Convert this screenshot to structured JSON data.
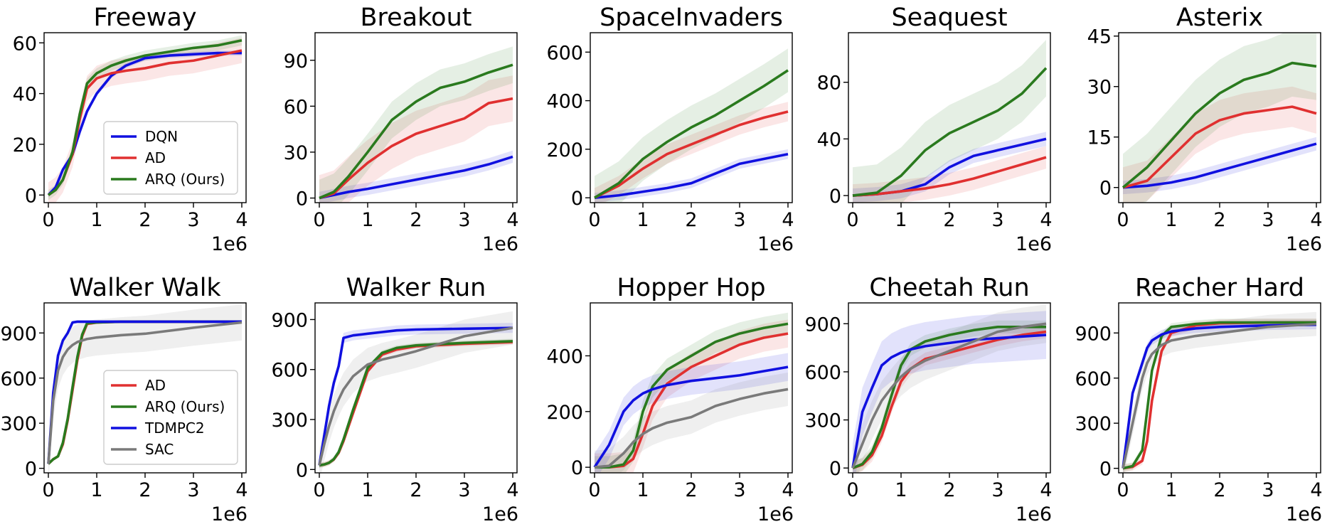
{
  "colors": {
    "DQN": "#1010e0",
    "AD": "#e03030",
    "ARQ (Ours)": "#2a7a1e",
    "TDMPC2": "#1010e0",
    "SAC": "#7a7a7a"
  },
  "chart_data": [
    {
      "type": "line",
      "title": "Freeway",
      "xlabel": "",
      "ylabel": "",
      "x_multiplier": "1e6",
      "xlim": [
        0,
        4
      ],
      "ylim": [
        -3,
        64
      ],
      "xticks": [
        "0",
        "1",
        "2",
        "3",
        "4"
      ],
      "yticks": [
        0,
        20,
        40,
        60
      ],
      "legend": {
        "position": "lower-right",
        "entries": [
          "DQN",
          "AD",
          "ARQ (Ours)"
        ]
      },
      "x": [
        0,
        0.15,
        0.3,
        0.5,
        0.65,
        0.8,
        1.0,
        1.3,
        1.6,
        2.0,
        2.5,
        3.0,
        3.5,
        4.0
      ],
      "series": [
        {
          "name": "DQN",
          "values": [
            0,
            3,
            10,
            16,
            25,
            33,
            40,
            47,
            51,
            54,
            55,
            55.5,
            56,
            56
          ],
          "band": 1
        },
        {
          "name": "AD",
          "values": [
            0,
            2,
            6,
            16,
            30,
            42,
            46,
            48,
            49,
            50,
            52,
            53,
            55,
            57
          ],
          "band": 5
        },
        {
          "name": "ARQ (Ours)",
          "values": [
            0,
            2,
            6,
            17,
            32,
            44,
            48,
            51,
            53,
            55,
            56.5,
            58,
            59,
            61
          ],
          "band": 2
        }
      ]
    },
    {
      "type": "line",
      "title": "Breakout",
      "xlabel": "",
      "ylabel": "",
      "x_multiplier": "1e6",
      "xlim": [
        0,
        4
      ],
      "ylim": [
        -3,
        108
      ],
      "xticks": [
        "0",
        "1",
        "2",
        "3",
        "4"
      ],
      "yticks": [
        0,
        30,
        60,
        90
      ],
      "x": [
        0,
        0.3,
        0.6,
        1.0,
        1.5,
        2.0,
        2.5,
        3.0,
        3.5,
        4.0
      ],
      "series": [
        {
          "name": "DQN",
          "values": [
            0,
            2,
            4,
            6,
            9,
            12,
            15,
            18,
            22,
            27
          ],
          "band": 4
        },
        {
          "name": "AD",
          "values": [
            0,
            3,
            12,
            23,
            34,
            42,
            47,
            52,
            62,
            65
          ],
          "band": 15
        },
        {
          "name": "ARQ (Ours)",
          "values": [
            0,
            4,
            14,
            30,
            51,
            63,
            72,
            76,
            82,
            87
          ],
          "band": 12
        }
      ]
    },
    {
      "type": "line",
      "title": "SpaceInvaders",
      "xlabel": "",
      "ylabel": "",
      "x_multiplier": "1e6",
      "xlim": [
        0,
        4
      ],
      "ylim": [
        -20,
        680
      ],
      "xticks": [
        "0",
        "1",
        "2",
        "3",
        "4"
      ],
      "yticks": [
        0,
        200,
        400,
        600
      ],
      "x": [
        0,
        0.5,
        1.0,
        1.5,
        2.0,
        2.5,
        3.0,
        3.5,
        4.0
      ],
      "series": [
        {
          "name": "DQN",
          "values": [
            0,
            10,
            25,
            40,
            60,
            100,
            140,
            160,
            180
          ],
          "band": 20
        },
        {
          "name": "AD",
          "values": [
            0,
            50,
            120,
            180,
            220,
            260,
            300,
            330,
            355
          ],
          "band": 40
        },
        {
          "name": "ARQ (Ours)",
          "values": [
            0,
            60,
            160,
            230,
            290,
            340,
            400,
            460,
            525
          ],
          "band": 90
        }
      ]
    },
    {
      "type": "line",
      "title": "Seaquest",
      "xlabel": "",
      "ylabel": "",
      "x_multiplier": "1e6",
      "xlim": [
        0,
        4
      ],
      "ylim": [
        -5,
        115
      ],
      "xticks": [
        "0",
        "1",
        "2",
        "3",
        "4"
      ],
      "yticks": [
        0,
        40,
        80
      ],
      "x": [
        0,
        0.5,
        1.0,
        1.5,
        2.0,
        2.5,
        3.0,
        3.5,
        4.0
      ],
      "series": [
        {
          "name": "DQN",
          "values": [
            0,
            1,
            3,
            8,
            20,
            28,
            32,
            36,
            40
          ],
          "band": 5
        },
        {
          "name": "AD",
          "values": [
            0,
            1,
            3,
            5,
            8,
            12,
            17,
            22,
            27
          ],
          "band": 8
        },
        {
          "name": "ARQ (Ours)",
          "values": [
            0,
            2,
            14,
            32,
            44,
            52,
            60,
            72,
            90
          ],
          "band": 20
        }
      ]
    },
    {
      "type": "line",
      "title": "Asterix",
      "xlabel": "",
      "ylabel": "",
      "x_multiplier": "1e6",
      "xlim": [
        0,
        4
      ],
      "ylim": [
        -4.5,
        46
      ],
      "xticks": [
        "0",
        "1",
        "2",
        "3",
        "4"
      ],
      "yticks": [
        0,
        15,
        30,
        45
      ],
      "x": [
        0,
        0.5,
        1.0,
        1.5,
        2.0,
        2.5,
        3.0,
        3.5,
        4.0
      ],
      "series": [
        {
          "name": "DQN",
          "values": [
            0,
            0.5,
            1.5,
            3,
            5,
            7,
            9,
            11,
            13
          ],
          "band": 2
        },
        {
          "name": "AD",
          "values": [
            0,
            2,
            9,
            16,
            20,
            22,
            23,
            24,
            22
          ],
          "band": 6
        },
        {
          "name": "ARQ (Ours)",
          "values": [
            0,
            6,
            14,
            22,
            28,
            32,
            34,
            37,
            36
          ],
          "band": 10
        }
      ]
    },
    {
      "type": "line",
      "title": "Walker Walk",
      "xlabel": "",
      "ylabel": "",
      "x_multiplier": "1e6",
      "xlim": [
        0,
        4
      ],
      "ylim": [
        -30,
        1100
      ],
      "xticks": [
        "0",
        "1",
        "2",
        "3",
        "4"
      ],
      "yticks": [
        0,
        300,
        600,
        900
      ],
      "legend": {
        "position": "lower-right",
        "entries": [
          "AD",
          "ARQ (Ours)",
          "TDMPC2",
          "SAC"
        ]
      },
      "x": [
        0,
        0.1,
        0.2,
        0.3,
        0.4,
        0.5,
        0.6,
        0.7,
        0.8,
        1.0,
        1.5,
        2.0,
        3.0,
        4.0
      ],
      "series": [
        {
          "name": "AD",
          "values": [
            30,
            60,
            80,
            160,
            320,
            520,
            720,
            880,
            960,
            970,
            975,
            975,
            975,
            975
          ],
          "band": 10
        },
        {
          "name": "ARQ (Ours)",
          "values": [
            30,
            60,
            80,
            170,
            330,
            540,
            740,
            890,
            965,
            970,
            975,
            975,
            975,
            975
          ],
          "band": 10
        },
        {
          "name": "TDMPC2",
          "values": [
            30,
            500,
            750,
            850,
            900,
            970,
            975,
            975,
            975,
            975,
            975,
            975,
            975,
            975
          ],
          "band": 10
        },
        {
          "name": "SAC",
          "values": [
            30,
            450,
            650,
            740,
            790,
            820,
            840,
            850,
            860,
            870,
            885,
            895,
            935,
            970
          ],
          "band": 120
        }
      ]
    },
    {
      "type": "line",
      "title": "Walker Run",
      "xlabel": "",
      "ylabel": "",
      "x_multiplier": "1e6",
      "xlim": [
        0,
        4
      ],
      "ylim": [
        -20,
        1000
      ],
      "xticks": [
        "0",
        "1",
        "2",
        "3",
        "4"
      ],
      "yticks": [
        0,
        300,
        600,
        900
      ],
      "x": [
        0,
        0.1,
        0.2,
        0.3,
        0.4,
        0.5,
        0.7,
        1.0,
        1.3,
        1.6,
        2.0,
        3.0,
        4.0
      ],
      "series": [
        {
          "name": "AD",
          "values": [
            25,
            30,
            40,
            60,
            100,
            170,
            340,
            590,
            690,
            720,
            740,
            755,
            765
          ],
          "band": 15
        },
        {
          "name": "ARQ (Ours)",
          "values": [
            25,
            30,
            40,
            62,
            105,
            180,
            360,
            610,
            700,
            730,
            745,
            760,
            770
          ],
          "band": 15
        },
        {
          "name": "TDMPC2",
          "values": [
            25,
            200,
            380,
            520,
            620,
            790,
            805,
            815,
            825,
            835,
            840,
            845,
            850
          ],
          "band": 30
        },
        {
          "name": "SAC",
          "values": [
            25,
            150,
            260,
            350,
            420,
            480,
            560,
            630,
            660,
            680,
            710,
            800,
            850
          ],
          "band": 100
        }
      ]
    },
    {
      "type": "line",
      "title": "Hopper Hop",
      "xlabel": "",
      "ylabel": "",
      "x_multiplier": "1e6",
      "xlim": [
        0,
        4
      ],
      "ylim": [
        -20,
        590
      ],
      "xticks": [
        "0",
        "1",
        "2",
        "3",
        "4"
      ],
      "yticks": [
        0,
        200,
        400
      ],
      "x": [
        0,
        0.3,
        0.6,
        0.8,
        1.0,
        1.2,
        1.5,
        2.0,
        2.5,
        3.0,
        3.5,
        4.0
      ],
      "series": [
        {
          "name": "AD",
          "values": [
            0,
            0,
            5,
            30,
            120,
            220,
            300,
            360,
            400,
            440,
            465,
            480
          ],
          "band": 50
        },
        {
          "name": "ARQ (Ours)",
          "values": [
            0,
            0,
            10,
            60,
            200,
            290,
            350,
            400,
            450,
            480,
            500,
            515
          ],
          "band": 40
        },
        {
          "name": "TDMPC2",
          "values": [
            0,
            80,
            200,
            240,
            265,
            280,
            295,
            310,
            320,
            330,
            345,
            360
          ],
          "band": 50
        },
        {
          "name": "SAC",
          "values": [
            0,
            5,
            50,
            90,
            120,
            140,
            160,
            180,
            220,
            245,
            265,
            280
          ],
          "band": 60
        }
      ]
    },
    {
      "type": "line",
      "title": "Cheetah Run",
      "xlabel": "",
      "ylabel": "",
      "x_multiplier": "1e6",
      "xlim": [
        0,
        4
      ],
      "ylim": [
        -30,
        1030
      ],
      "xticks": [
        "0",
        "1",
        "2",
        "3",
        "4"
      ],
      "yticks": [
        0,
        300,
        600,
        900
      ],
      "x": [
        0,
        0.2,
        0.4,
        0.6,
        0.8,
        1.0,
        1.2,
        1.5,
        2.0,
        2.5,
        3.0,
        3.5,
        4.0
      ],
      "series": [
        {
          "name": "AD",
          "values": [
            0,
            20,
            80,
            200,
            380,
            540,
            620,
            680,
            720,
            760,
            800,
            830,
            850
          ],
          "band": 40
        },
        {
          "name": "ARQ (Ours)",
          "values": [
            0,
            25,
            100,
            250,
            450,
            640,
            740,
            790,
            830,
            860,
            880,
            880,
            880
          ],
          "band": 40
        },
        {
          "name": "TDMPC2",
          "values": [
            0,
            350,
            500,
            640,
            690,
            720,
            740,
            760,
            780,
            800,
            810,
            820,
            830
          ],
          "band": 150
        },
        {
          "name": "SAC",
          "values": [
            0,
            150,
            300,
            420,
            500,
            570,
            620,
            670,
            730,
            790,
            850,
            880,
            900
          ],
          "band": 120
        }
      ]
    },
    {
      "type": "line",
      "title": "Reacher Hard",
      "xlabel": "",
      "ylabel": "",
      "x_multiplier": "1e6",
      "xlim": [
        0,
        4
      ],
      "ylim": [
        -30,
        1100
      ],
      "xticks": [
        "0",
        "1",
        "2",
        "3",
        "4"
      ],
      "yticks": [
        0,
        300,
        600,
        900
      ],
      "x": [
        0,
        0.2,
        0.4,
        0.5,
        0.6,
        0.8,
        1.0,
        1.5,
        2.0,
        3.0,
        4.0
      ],
      "series": [
        {
          "name": "AD",
          "values": [
            0,
            10,
            50,
            180,
            450,
            780,
            900,
            950,
            965,
            970,
            970
          ],
          "band": 25
        },
        {
          "name": "ARQ (Ours)",
          "values": [
            0,
            15,
            120,
            380,
            650,
            880,
            940,
            960,
            970,
            970,
            970
          ],
          "band": 25
        },
        {
          "name": "TDMPC2",
          "values": [
            0,
            500,
            700,
            800,
            850,
            890,
            910,
            930,
            940,
            950,
            955
          ],
          "band": 30
        },
        {
          "name": "SAC",
          "values": [
            0,
            300,
            600,
            700,
            760,
            820,
            850,
            880,
            900,
            940,
            960
          ],
          "band": 80
        }
      ]
    }
  ]
}
